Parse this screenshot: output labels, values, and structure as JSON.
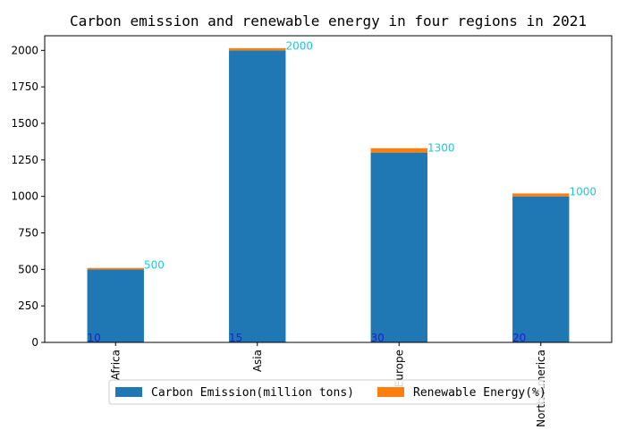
{
  "chart_data": {
    "type": "bar",
    "stacked": true,
    "title": "Carbon emission and renewable energy in four regions in 2021",
    "categories": [
      "Africa",
      "Asia",
      "Europe",
      "North America"
    ],
    "series": [
      {
        "name": "Carbon Emission(million tons)",
        "values": [
          500,
          2000,
          1300,
          1000
        ],
        "color": "#1f77b4"
      },
      {
        "name": "Renewable Energy(%)",
        "values": [
          10,
          15,
          30,
          20
        ],
        "color": "#ff7f0e"
      }
    ],
    "ylim": [
      0,
      2100
    ],
    "yticks": [
      0,
      250,
      500,
      750,
      1000,
      1250,
      1500,
      1750,
      2000
    ],
    "xlabel": "",
    "ylabel": "",
    "legend": "bottom-center",
    "grid": false
  }
}
